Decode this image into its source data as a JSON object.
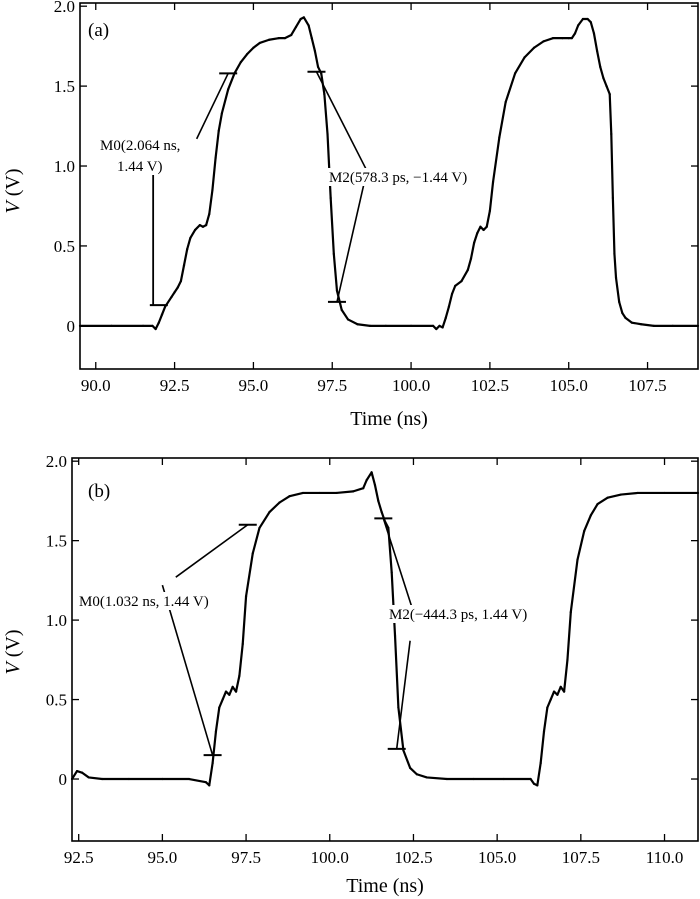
{
  "colors": {
    "trace": "#000000",
    "axes": "#000000",
    "background": "#ffffff"
  },
  "chart_data": [
    {
      "type": "line",
      "panel_label": "(a)",
      "xlabel": "Time (ns)",
      "ylabel_var": "V",
      "ylabel_unit": " (V)",
      "xlim": [
        89.5,
        109.1
      ],
      "ylim": [
        -0.27,
        2.02
      ],
      "xticks": [
        "90.0",
        "92.5",
        "95.0",
        "97.5",
        "100.0",
        "102.5",
        "105.0",
        "107.5"
      ],
      "yticks": [
        "0",
        "0.5",
        "1.0",
        "1.5",
        "2.0"
      ],
      "grid": false,
      "legend": "none",
      "series": [
        {
          "x": [
            89.5,
            90.5,
            91.5,
            91.8,
            91.9,
            92.0,
            92.1,
            92.2,
            92.4,
            92.5,
            92.6,
            92.7,
            92.8,
            92.9,
            93.0,
            93.15,
            93.3,
            93.4,
            93.5,
            93.6,
            93.7,
            93.8,
            93.9,
            94.0,
            94.2,
            94.4,
            94.6,
            94.8,
            95.0,
            95.2,
            95.5,
            95.8,
            96.0,
            96.2,
            96.35,
            96.5,
            96.6,
            96.75,
            96.85,
            96.95,
            97.05,
            97.15,
            97.25,
            97.35,
            97.45,
            97.55,
            97.65,
            97.8,
            98.0,
            98.3,
            98.7,
            99.2,
            100.0,
            100.7,
            100.8,
            100.9,
            101.0,
            101.1,
            101.2,
            101.3,
            101.4,
            101.6,
            101.8,
            101.9,
            102.0,
            102.1,
            102.2,
            102.3,
            102.4,
            102.5,
            102.6,
            102.8,
            103.0,
            103.3,
            103.6,
            103.9,
            104.2,
            104.5,
            104.8,
            105.0,
            105.1,
            105.2,
            105.3,
            105.45,
            105.6,
            105.7,
            105.8,
            105.9,
            106.0,
            106.1,
            106.2,
            106.3,
            106.35,
            106.4,
            106.45,
            106.5,
            106.6,
            106.7,
            106.8,
            107.0,
            107.3,
            107.7,
            108.3,
            109.1
          ],
          "y": [
            0.0,
            0.0,
            0.0,
            0.0,
            -0.02,
            0.02,
            0.07,
            0.12,
            0.18,
            0.21,
            0.24,
            0.28,
            0.38,
            0.48,
            0.55,
            0.6,
            0.63,
            0.62,
            0.63,
            0.7,
            0.85,
            1.05,
            1.22,
            1.33,
            1.48,
            1.58,
            1.65,
            1.7,
            1.74,
            1.77,
            1.79,
            1.8,
            1.8,
            1.82,
            1.87,
            1.92,
            1.93,
            1.88,
            1.8,
            1.72,
            1.62,
            1.58,
            1.45,
            1.2,
            0.8,
            0.45,
            0.22,
            0.1,
            0.04,
            0.01,
            0.0,
            0.0,
            0.0,
            0.0,
            -0.02,
            0.0,
            -0.01,
            0.05,
            0.12,
            0.2,
            0.25,
            0.28,
            0.35,
            0.42,
            0.52,
            0.58,
            0.62,
            0.6,
            0.62,
            0.72,
            0.9,
            1.18,
            1.4,
            1.58,
            1.68,
            1.74,
            1.78,
            1.8,
            1.8,
            1.8,
            1.8,
            1.83,
            1.88,
            1.92,
            1.92,
            1.9,
            1.83,
            1.72,
            1.62,
            1.55,
            1.5,
            1.45,
            1.2,
            0.8,
            0.45,
            0.3,
            0.15,
            0.08,
            0.05,
            0.02,
            0.01,
            0.0,
            0.0,
            0.0
          ]
        }
      ],
      "markers": [
        {
          "x": 92.0,
          "y": 0.13
        },
        {
          "x": 94.2,
          "y": 1.58
        },
        {
          "x": 97.0,
          "y": 1.59
        },
        {
          "x": 97.65,
          "y": 0.15
        }
      ],
      "annotations": [
        {
          "id": "m0",
          "lines": [
            "M0(2.064 ns,",
            "1.44 V)"
          ],
          "pointer_from": [
            93.2,
            1.17
          ],
          "pointer_to": [
            94.2,
            1.58
          ],
          "leader_x": 91.82,
          "leader_y": [
            0.97,
            0.13
          ]
        },
        {
          "id": "m2",
          "lines": [
            "M2(578.3 ps, −1.44 V)"
          ],
          "pointer_from": [
            98.6,
            0.97
          ],
          "pointer_to_a": [
            97.0,
            1.59
          ],
          "pointer_to_b": [
            97.65,
            0.15
          ]
        }
      ]
    },
    {
      "type": "line",
      "panel_label": "(b)",
      "xlabel": "Time (ns)",
      "ylabel_var": "V",
      "ylabel_unit": " (V)",
      "xlim": [
        92.3,
        111.0
      ],
      "ylim": [
        -0.39,
        2.02
      ],
      "xticks": [
        "92.5",
        "95.0",
        "97.5",
        "100.0",
        "102.5",
        "105.0",
        "107.5",
        "110.0"
      ],
      "yticks": [
        "0",
        "0.5",
        "1.0",
        "1.5",
        "2.0"
      ],
      "grid": false,
      "legend": "none",
      "series": [
        {
          "x": [
            92.3,
            92.45,
            92.6,
            92.8,
            93.2,
            94.0,
            95.0,
            95.8,
            96.3,
            96.4,
            96.5,
            96.6,
            96.7,
            96.8,
            96.9,
            97.0,
            97.1,
            97.2,
            97.3,
            97.4,
            97.5,
            97.7,
            97.9,
            98.2,
            98.5,
            98.8,
            99.2,
            99.7,
            100.2,
            100.7,
            101.0,
            101.1,
            101.25,
            101.35,
            101.45,
            101.55,
            101.65,
            101.75,
            101.85,
            101.95,
            102.05,
            102.2,
            102.4,
            102.6,
            102.9,
            103.5,
            104.3,
            105.2,
            106.0,
            106.1,
            106.2,
            106.3,
            106.4,
            106.5,
            106.6,
            106.7,
            106.8,
            106.9,
            107.0,
            107.1,
            107.2,
            107.4,
            107.6,
            107.8,
            108.0,
            108.3,
            108.7,
            109.2,
            110.0,
            111.0
          ],
          "y": [
            0.0,
            0.05,
            0.04,
            0.01,
            0.0,
            0.0,
            0.0,
            0.0,
            -0.02,
            -0.04,
            0.1,
            0.3,
            0.45,
            0.5,
            0.55,
            0.53,
            0.58,
            0.55,
            0.65,
            0.85,
            1.15,
            1.42,
            1.58,
            1.68,
            1.74,
            1.78,
            1.8,
            1.8,
            1.8,
            1.81,
            1.83,
            1.88,
            1.93,
            1.85,
            1.75,
            1.68,
            1.62,
            1.58,
            1.3,
            0.9,
            0.45,
            0.18,
            0.07,
            0.03,
            0.01,
            0.0,
            0.0,
            0.0,
            0.0,
            -0.03,
            -0.04,
            0.1,
            0.3,
            0.45,
            0.5,
            0.55,
            0.53,
            0.58,
            0.55,
            0.75,
            1.05,
            1.38,
            1.56,
            1.66,
            1.73,
            1.77,
            1.79,
            1.8,
            1.8,
            1.8
          ]
        }
      ],
      "markers": [
        {
          "x": 96.5,
          "y": 0.15
        },
        {
          "x": 97.55,
          "y": 1.6
        },
        {
          "x": 101.6,
          "y": 1.64
        },
        {
          "x": 102.0,
          "y": 0.19
        }
      ],
      "annotations": [
        {
          "id": "m0",
          "lines": [
            "M0(1.032 ns, 1.44 V)"
          ],
          "pointer_from_a": [
            95.4,
            1.27
          ],
          "pointer_to_a": [
            97.55,
            1.6
          ],
          "pointer_from_b": [
            95.0,
            1.22
          ],
          "pointer_to_b": [
            96.5,
            0.15
          ]
        },
        {
          "id": "m2",
          "lines": [
            "M2(−444.3 ps, 1.44 V)"
          ],
          "pointer_from_a": [
            102.5,
            1.05
          ],
          "pointer_to_a": [
            101.6,
            1.64
          ],
          "pointer_from_b": [
            102.4,
            0.87
          ],
          "pointer_to_b": [
            102.0,
            0.19
          ]
        }
      ]
    }
  ]
}
